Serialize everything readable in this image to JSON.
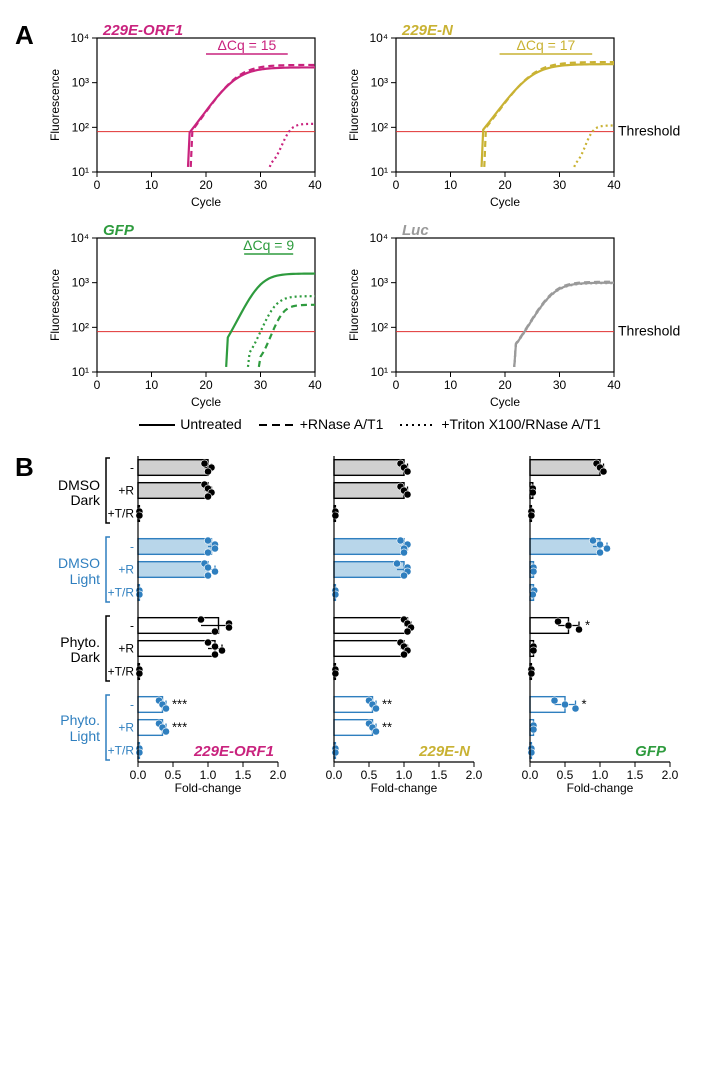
{
  "panelA": {
    "label": "A",
    "yLabel": "Fluorescence",
    "xLabel": "Cycle",
    "xlim": [
      0,
      40
    ],
    "ylim": [
      10,
      10000
    ],
    "xTicks": [
      0,
      10,
      20,
      30,
      40
    ],
    "yTicks": [
      10,
      100,
      1000,
      10000
    ],
    "yTickLabels": [
      "10¹",
      "10²",
      "10³",
      "10⁴"
    ],
    "threshold": 80,
    "thresholdLabel": "Threshold",
    "thresholdColor": "#e03030",
    "subplots": [
      {
        "title": "229E-ORF1",
        "color": "#c9237e",
        "dCq": "ΔCq = 15",
        "showThresholdLabel": false,
        "traces": {
          "solid": {
            "start": 17,
            "top": 2200
          },
          "dashed": {
            "start": 17.5,
            "top": 2500
          },
          "dotted": {
            "start": 32,
            "top": 120
          }
        }
      },
      {
        "title": "229E-N",
        "color": "#c9b233",
        "dCq": "ΔCq = 17",
        "showThresholdLabel": true,
        "traces": {
          "solid": {
            "start": 16,
            "top": 2600
          },
          "dashed": {
            "start": 16.5,
            "top": 2900
          },
          "dotted": {
            "start": 33,
            "top": 110
          }
        }
      },
      {
        "title": "GFP",
        "color": "#2e9b3e",
        "dCq": "ΔCq = 9",
        "showThresholdLabel": false,
        "traces": {
          "solid": {
            "start": 24,
            "top": 1600
          },
          "dashed": {
            "start": 30,
            "top": 320
          },
          "dotted": {
            "start": 28,
            "top": 500
          }
        }
      },
      {
        "title": "Luc",
        "color": "#9a9a9a",
        "dCq": null,
        "showThresholdLabel": true,
        "traces": {
          "solid": {
            "start": 22,
            "top": 1000
          },
          "dashed": {
            "start": 22,
            "top": 1050
          },
          "dotted": {
            "start": 22,
            "top": 980
          }
        }
      }
    ],
    "legend": [
      {
        "style": "solid",
        "label": "Untreated"
      },
      {
        "style": "dashed",
        "label": "+RNase A/T1"
      },
      {
        "style": "dotted",
        "label": "+Triton X100/RNase A/T1"
      }
    ]
  },
  "panelB": {
    "label": "B",
    "xLabel": "Fold-change",
    "xlim": [
      0,
      2
    ],
    "xTicks": [
      0.0,
      0.5,
      1.0,
      1.5,
      2.0
    ],
    "rowLabels": [
      "-",
      "+R",
      "+T/R"
    ],
    "groups": [
      {
        "name": "DMSO\nDark",
        "color": "#000000",
        "fill": "#d0d0d0"
      },
      {
        "name": "DMSO\nLight",
        "color": "#2f7fbf",
        "fill": "#b8d6ea"
      },
      {
        "name": "Phyto.\nDark",
        "color": "#000000",
        "fill": "#ffffff"
      },
      {
        "name": "Phyto.\nLight",
        "color": "#2f7fbf",
        "fill": "#ffffff"
      }
    ],
    "charts": [
      {
        "title": "229E-ORF1",
        "titleColor": "#c9237e",
        "data": [
          {
            "bars": [
              1.0,
              1.0,
              0.02
            ],
            "pts": [
              [
                0.95,
                1.05,
                1.0
              ],
              [
                0.95,
                1.0,
                1.05,
                1.0
              ],
              [
                0.02,
                0.02
              ]
            ],
            "sig": [
              "",
              "",
              ""
            ]
          },
          {
            "bars": [
              1.05,
              1.0,
              0.02
            ],
            "pts": [
              [
                1.0,
                1.1,
                1.1,
                1.0
              ],
              [
                0.95,
                1.0,
                1.1,
                1.0
              ],
              [
                0.02,
                0.02
              ]
            ],
            "sig": [
              "",
              "",
              ""
            ]
          },
          {
            "bars": [
              1.15,
              1.1,
              0.02
            ],
            "pts": [
              [
                0.9,
                1.3,
                1.3,
                1.1
              ],
              [
                1.0,
                1.1,
                1.2,
                1.1
              ],
              [
                0.02,
                0.02
              ]
            ],
            "sig": [
              "",
              "",
              ""
            ]
          },
          {
            "bars": [
              0.35,
              0.35,
              0.02
            ],
            "pts": [
              [
                0.3,
                0.35,
                0.4
              ],
              [
                0.3,
                0.35,
                0.4
              ],
              [
                0.02,
                0.02
              ]
            ],
            "sig": [
              "***",
              "***",
              ""
            ]
          }
        ]
      },
      {
        "title": "229E-N",
        "titleColor": "#c9b233",
        "data": [
          {
            "bars": [
              1.0,
              1.0,
              0.02
            ],
            "pts": [
              [
                0.95,
                1.0,
                1.05
              ],
              [
                0.95,
                1.0,
                1.05
              ],
              [
                0.02,
                0.02
              ]
            ],
            "sig": [
              "",
              "",
              ""
            ]
          },
          {
            "bars": [
              1.0,
              1.0,
              0.02
            ],
            "pts": [
              [
                0.95,
                1.05,
                1.0,
                1.0
              ],
              [
                0.9,
                1.05,
                1.05,
                1.0
              ],
              [
                0.02,
                0.02
              ]
            ],
            "sig": [
              "",
              "",
              ""
            ]
          },
          {
            "bars": [
              1.05,
              1.0,
              0.02
            ],
            "pts": [
              [
                1.0,
                1.05,
                1.1,
                1.05
              ],
              [
                0.95,
                1.0,
                1.05,
                1.0
              ],
              [
                0.02,
                0.02
              ]
            ],
            "sig": [
              "",
              "",
              ""
            ]
          },
          {
            "bars": [
              0.55,
              0.55,
              0.02
            ],
            "pts": [
              [
                0.5,
                0.55,
                0.6
              ],
              [
                0.5,
                0.55,
                0.6
              ],
              [
                0.02,
                0.02
              ]
            ],
            "sig": [
              "**",
              "**",
              ""
            ]
          }
        ]
      },
      {
        "title": "GFP",
        "titleColor": "#2e9b3e",
        "data": [
          {
            "bars": [
              1.0,
              0.04,
              0.02
            ],
            "pts": [
              [
                0.95,
                1.0,
                1.05
              ],
              [
                0.04,
                0.04
              ],
              [
                0.02,
                0.02
              ]
            ],
            "sig": [
              "",
              "",
              ""
            ]
          },
          {
            "bars": [
              1.0,
              0.05,
              0.05
            ],
            "pts": [
              [
                0.9,
                1.0,
                1.1,
                1.0
              ],
              [
                0.05,
                0.05
              ],
              [
                0.06,
                0.04
              ]
            ],
            "sig": [
              "",
              "",
              ""
            ]
          },
          {
            "bars": [
              0.55,
              0.05,
              0.02
            ],
            "pts": [
              [
                0.4,
                0.55,
                0.7
              ],
              [
                0.05,
                0.05
              ],
              [
                0.02,
                0.02
              ]
            ],
            "sig": [
              "*",
              "",
              ""
            ]
          },
          {
            "bars": [
              0.5,
              0.05,
              0.02
            ],
            "pts": [
              [
                0.35,
                0.5,
                0.65
              ],
              [
                0.05,
                0.05
              ],
              [
                0.02,
                0.02
              ]
            ],
            "sig": [
              "*",
              "",
              ""
            ]
          }
        ]
      }
    ]
  }
}
